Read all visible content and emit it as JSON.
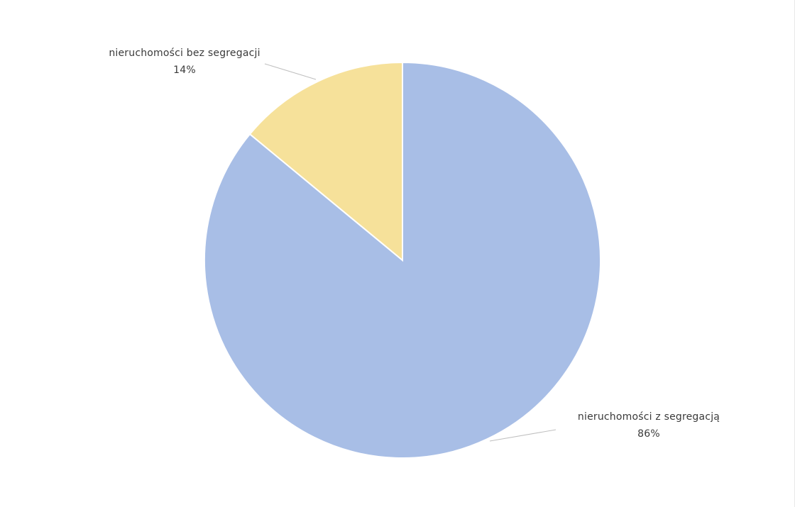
{
  "chart_data": {
    "type": "pie",
    "title": "",
    "slices": [
      {
        "label": "nieruchomości z segregacją",
        "value": 86,
        "value_label": "86%",
        "color": "#a8bee6"
      },
      {
        "label": "nieruchomości bez segregacji",
        "value": 14,
        "value_label": "14%",
        "color": "#f6e19a"
      }
    ],
    "start_angle_deg": 0,
    "direction": "clockwise",
    "legend": "none"
  }
}
